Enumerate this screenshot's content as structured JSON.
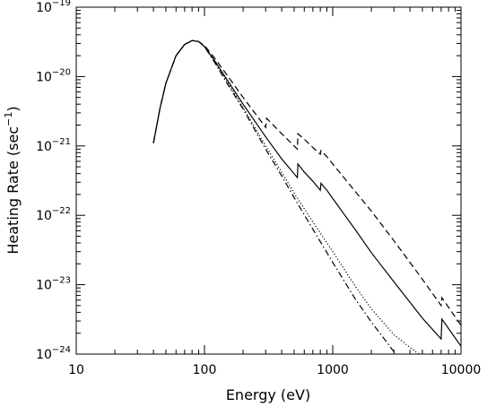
{
  "chart_data": {
    "type": "line",
    "xlabel": "Energy (eV)",
    "ylabel_main": "Heating Rate (sec",
    "ylabel_exp": "−1",
    "ylabel_close": ")",
    "x_scale": "log",
    "y_scale": "log",
    "xlim": [
      10,
      10000
    ],
    "ylim": [
      1e-24,
      1e-19
    ],
    "grid": false,
    "legend": "none",
    "x_ticks": [
      {
        "value": 10,
        "label": "10"
      },
      {
        "value": 100,
        "label": "100"
      },
      {
        "value": 1000,
        "label": "1000"
      },
      {
        "value": 10000,
        "label": "10000"
      }
    ],
    "y_ticks": [
      {
        "value": 1e-24,
        "base": "10",
        "exp": "−24"
      },
      {
        "value": 1e-23,
        "base": "10",
        "exp": "−23"
      },
      {
        "value": 1e-22,
        "base": "10",
        "exp": "−22"
      },
      {
        "value": 1e-21,
        "base": "10",
        "exp": "−21"
      },
      {
        "value": 1e-20,
        "base": "10",
        "exp": "−20"
      },
      {
        "value": 1e-19,
        "base": "10",
        "exp": "−19"
      }
    ],
    "series": [
      {
        "style": "solid",
        "points": [
          [
            40,
            1.1e-21
          ],
          [
            45,
            3.5e-21
          ],
          [
            50,
            8e-21
          ],
          [
            60,
            2e-20
          ],
          [
            70,
            2.9e-20
          ],
          [
            80,
            3.3e-20
          ],
          [
            90,
            3.2e-20
          ],
          [
            100,
            2.7e-20
          ],
          [
            120,
            1.7e-20
          ],
          [
            150,
            9e-21
          ],
          [
            200,
            4e-21
          ],
          [
            250,
            2.2e-21
          ],
          [
            300,
            1.35e-21
          ],
          [
            400,
            6.5e-22
          ],
          [
            530,
            3.5e-22
          ],
          [
            535,
            5.5e-22
          ],
          [
            600,
            4.2e-22
          ],
          [
            700,
            3.1e-22
          ],
          [
            800,
            2.3e-22
          ],
          [
            810,
            2.9e-22
          ],
          [
            900,
            2.3e-22
          ],
          [
            1000,
            1.75e-22
          ],
          [
            1500,
            6.2e-23
          ],
          [
            2000,
            2.9e-23
          ],
          [
            3000,
            1.1e-23
          ],
          [
            5000,
            3.3e-24
          ],
          [
            7000,
            1.65e-24
          ],
          [
            7100,
            3.2e-24
          ],
          [
            10000,
            1.3e-24
          ]
        ]
      },
      {
        "style": "dashed",
        "points": [
          [
            40,
            1.1e-21
          ],
          [
            45,
            3.5e-21
          ],
          [
            50,
            8e-21
          ],
          [
            60,
            2e-20
          ],
          [
            70,
            2.9e-20
          ],
          [
            80,
            3.3e-20
          ],
          [
            90,
            3.2e-20
          ],
          [
            100,
            2.8e-20
          ],
          [
            120,
            1.85e-20
          ],
          [
            150,
            1.05e-20
          ],
          [
            200,
            5e-21
          ],
          [
            250,
            2.9e-21
          ],
          [
            300,
            1.85e-21
          ],
          [
            305,
            2.5e-21
          ],
          [
            400,
            1.5e-21
          ],
          [
            530,
            9e-22
          ],
          [
            535,
            1.5e-21
          ],
          [
            600,
            1.25e-21
          ],
          [
            700,
            9.5e-22
          ],
          [
            800,
            7.6e-22
          ],
          [
            810,
            8.6e-22
          ],
          [
            900,
            7e-22
          ],
          [
            1000,
            5.5e-22
          ],
          [
            1500,
            2.2e-22
          ],
          [
            2000,
            1.15e-22
          ],
          [
            3000,
            4.3e-23
          ],
          [
            5000,
            1.2e-23
          ],
          [
            7000,
            5e-24
          ],
          [
            7100,
            6.5e-24
          ],
          [
            10000,
            2.6e-24
          ]
        ]
      },
      {
        "style": "dotted",
        "points": [
          [
            40,
            1.1e-21
          ],
          [
            45,
            3.5e-21
          ],
          [
            50,
            8e-21
          ],
          [
            60,
            2e-20
          ],
          [
            70,
            2.9e-20
          ],
          [
            80,
            3.3e-20
          ],
          [
            90,
            3.2e-20
          ],
          [
            100,
            2.7e-20
          ],
          [
            120,
            1.65e-20
          ],
          [
            150,
            8.5e-21
          ],
          [
            200,
            3.6e-21
          ],
          [
            300,
            1e-21
          ],
          [
            400,
            4.2e-22
          ],
          [
            500,
            2.1e-22
          ],
          [
            700,
            8e-23
          ],
          [
            1000,
            3e-23
          ],
          [
            1500,
            9.5e-24
          ],
          [
            2000,
            4.5e-24
          ],
          [
            3000,
            1.9e-24
          ],
          [
            4000,
            1.25e-24
          ],
          [
            4700,
            1e-24
          ]
        ]
      },
      {
        "style": "dash-dot",
        "points": [
          [
            40,
            1.1e-21
          ],
          [
            45,
            3.5e-21
          ],
          [
            50,
            8e-21
          ],
          [
            60,
            2e-20
          ],
          [
            70,
            2.9e-20
          ],
          [
            80,
            3.3e-20
          ],
          [
            90,
            3.2e-20
          ],
          [
            100,
            2.7e-20
          ],
          [
            120,
            1.6e-20
          ],
          [
            150,
            8e-21
          ],
          [
            200,
            3.4e-21
          ],
          [
            300,
            9e-22
          ],
          [
            400,
            3.7e-22
          ],
          [
            500,
            1.8e-22
          ],
          [
            700,
            6.3e-23
          ],
          [
            1000,
            2.1e-23
          ],
          [
            1500,
            6.2e-24
          ],
          [
            2000,
            2.9e-24
          ],
          [
            2700,
            1.4e-24
          ],
          [
            3100,
            1e-24
          ]
        ]
      }
    ]
  }
}
